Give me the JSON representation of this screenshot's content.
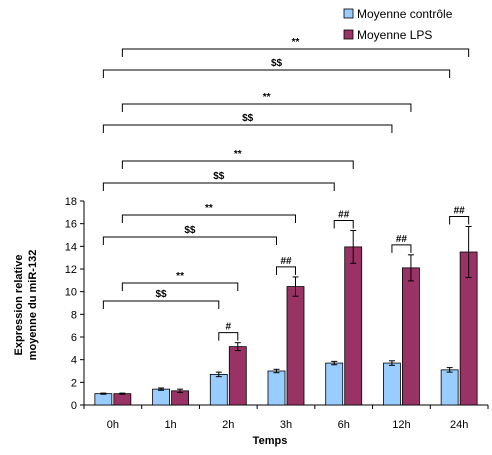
{
  "chart_data": {
    "type": "bar",
    "xlabel": "Temps",
    "ylabel_lines": [
      "Expression relative",
      "moyenne du miR-132"
    ],
    "ylim": [
      0,
      18
    ],
    "yticks": [
      0,
      2,
      4,
      6,
      8,
      10,
      12,
      14,
      16,
      18
    ],
    "categories": [
      "0h",
      "1h",
      "2h",
      "3h",
      "6h",
      "12h",
      "24h"
    ],
    "series": [
      {
        "name": "Moyenne contrôle",
        "color": "#99ccff",
        "values": [
          1.0,
          1.4,
          2.7,
          3.0,
          3.7,
          3.7,
          3.1
        ],
        "errors": [
          0.05,
          0.1,
          0.2,
          0.15,
          0.15,
          0.2,
          0.2
        ]
      },
      {
        "name": "Moyenne LPS",
        "color": "#993366",
        "values": [
          1.0,
          1.25,
          5.15,
          10.45,
          13.95,
          12.1,
          13.5
        ],
        "errors": [
          0.05,
          0.15,
          0.35,
          0.85,
          1.45,
          1.15,
          2.25
        ]
      }
    ],
    "pair_marks": [
      {
        "category": "2h",
        "label": "#"
      },
      {
        "category": "3h",
        "label": "##"
      },
      {
        "category": "6h",
        "label": "##"
      },
      {
        "category": "12h",
        "label": "##"
      },
      {
        "category": "24h",
        "label": "##"
      }
    ],
    "brackets": [
      {
        "from": "0h",
        "to": "2h",
        "series": "Moyenne contrôle",
        "label": "$$"
      },
      {
        "from": "0h",
        "to": "2h",
        "series": "Moyenne LPS",
        "label": "**"
      },
      {
        "from": "0h",
        "to": "3h",
        "series": "Moyenne contrôle",
        "label": "$$"
      },
      {
        "from": "0h",
        "to": "3h",
        "series": "Moyenne LPS",
        "label": "**"
      },
      {
        "from": "0h",
        "to": "6h",
        "series": "Moyenne contrôle",
        "label": "$$"
      },
      {
        "from": "0h",
        "to": "6h",
        "series": "Moyenne LPS",
        "label": "**"
      },
      {
        "from": "0h",
        "to": "12h",
        "series": "Moyenne contrôle",
        "label": "$$"
      },
      {
        "from": "0h",
        "to": "12h",
        "series": "Moyenne LPS",
        "label": "**"
      },
      {
        "from": "0h",
        "to": "24h",
        "series": "Moyenne contrôle",
        "label": "$$"
      },
      {
        "from": "0h",
        "to": "24h",
        "series": "Moyenne LPS",
        "label": "**"
      }
    ],
    "legend_position": "top-right",
    "grid": false
  }
}
